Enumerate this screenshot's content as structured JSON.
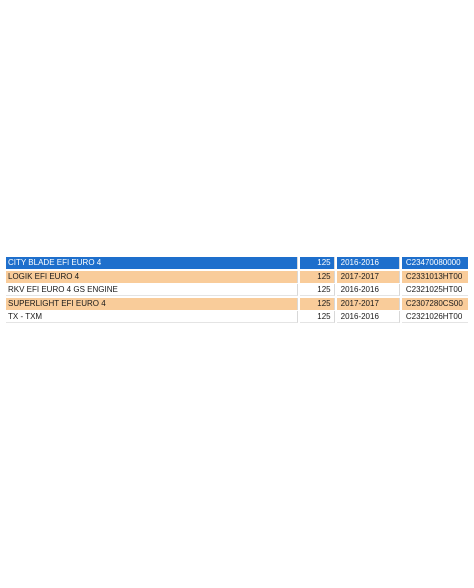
{
  "colors": {
    "selected_bg": "#1e6fcc",
    "alt_bg": "#f9cc9a",
    "plain_bg": "#ffffff"
  },
  "table": {
    "rows": [
      {
        "model": "CITY BLADE EFI EURO 4",
        "cc": "125",
        "years": "2016-2016",
        "code": "C23470080000",
        "state": "selected"
      },
      {
        "model": "LOGIK EFI EURO 4",
        "cc": "125",
        "years": "2017-2017",
        "code": "C2331013HT00",
        "state": "alt"
      },
      {
        "model": "RKV EFI EURO 4 GS ENGINE",
        "cc": "125",
        "years": "2016-2016",
        "code": "C2321025HT00",
        "state": "plain"
      },
      {
        "model": "SUPERLIGHT EFI EURO 4",
        "cc": "125",
        "years": "2017-2017",
        "code": "C2307280CS00",
        "state": "alt"
      },
      {
        "model": "TX - TXM",
        "cc": "125",
        "years": "2016-2016",
        "code": "C2321026HT00",
        "state": "plain"
      }
    ]
  }
}
